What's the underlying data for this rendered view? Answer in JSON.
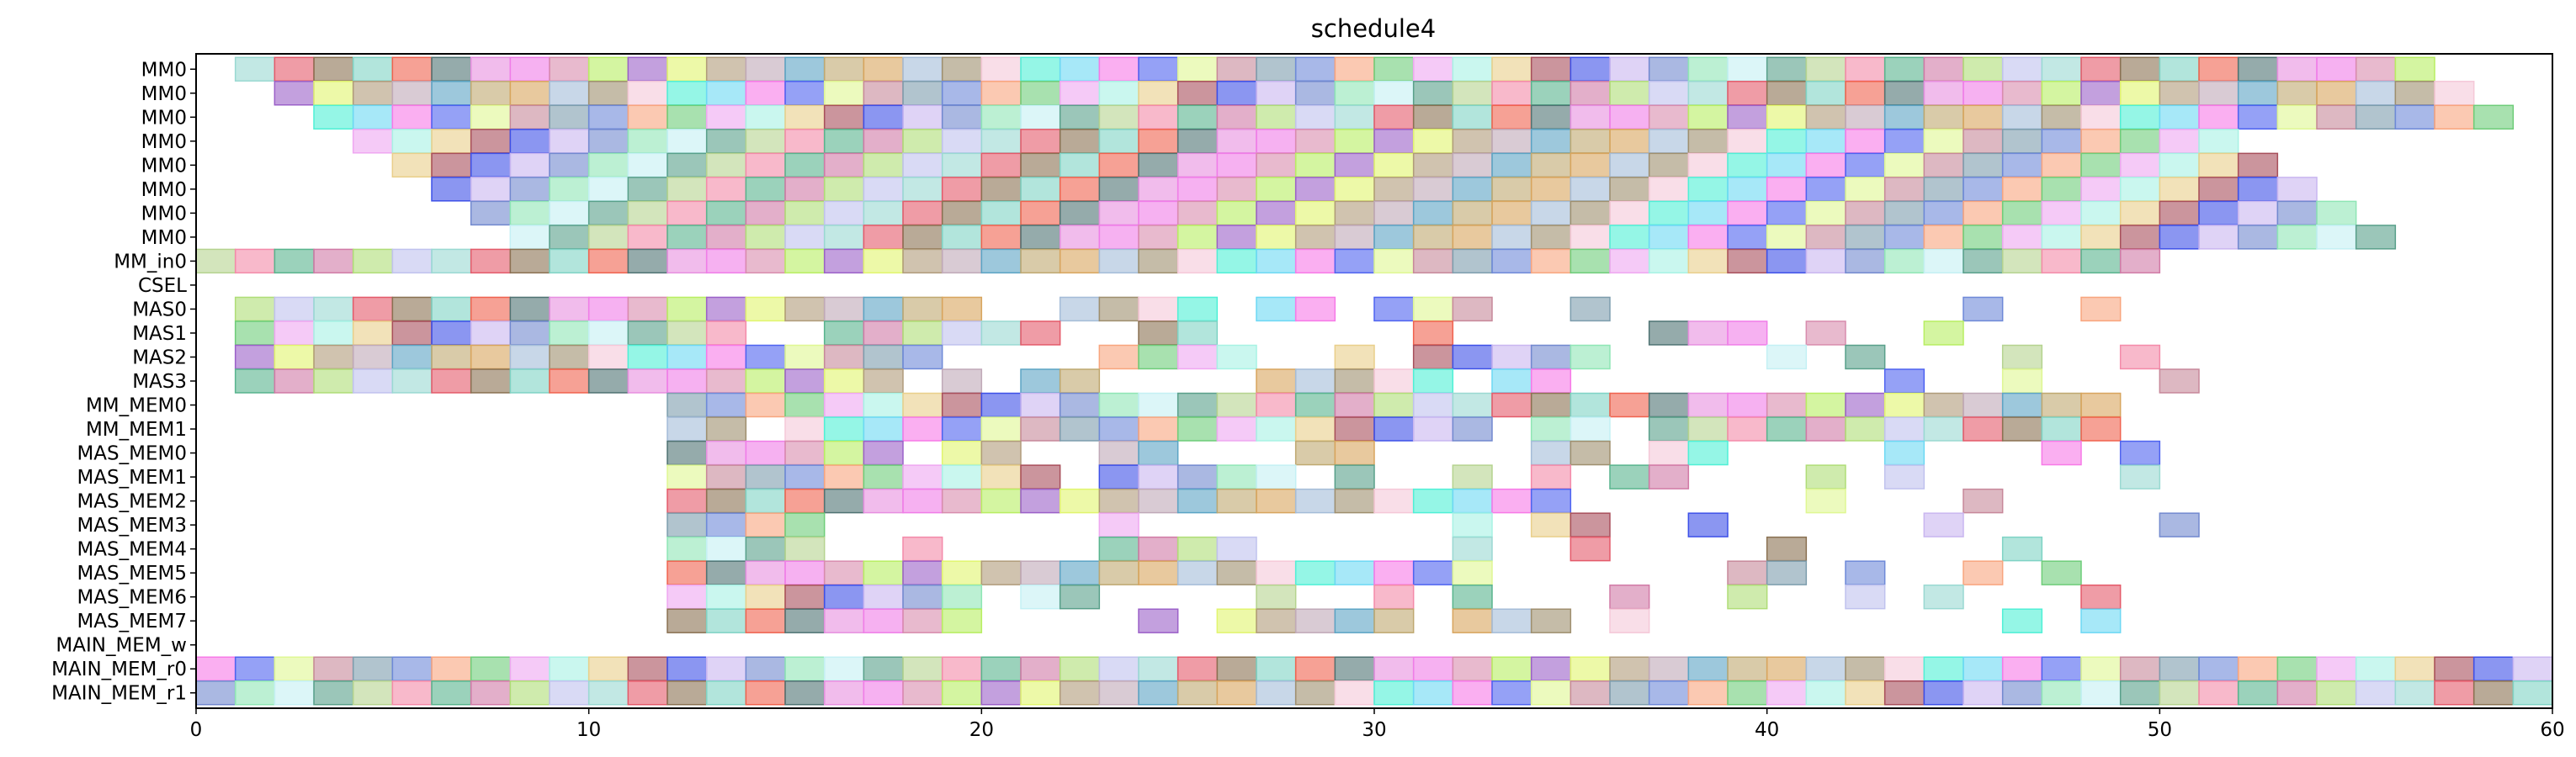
{
  "chart_data": {
    "type": "gantt",
    "title": "schedule4",
    "xlabel": "",
    "ylabel": "",
    "xlim": [
      0,
      60
    ],
    "x_ticks": [
      "0",
      "10",
      "20",
      "30",
      "40",
      "50",
      "60"
    ],
    "grid": false,
    "legend": "none",
    "rows": [
      "MM0",
      "MM0",
      "MM0",
      "MM0",
      "MM0",
      "MM0",
      "MM0",
      "MM0",
      "MM_in0",
      "CSEL",
      "MAS0",
      "MAS1",
      "MAS2",
      "MAS3",
      "MM_MEM0",
      "MM_MEM1",
      "MAS_MEM0",
      "MAS_MEM1",
      "MAS_MEM2",
      "MAS_MEM3",
      "MAS_MEM4",
      "MAS_MEM5",
      "MAS_MEM6",
      "MAS_MEM7",
      "MAIN_MEM_w",
      "MAIN_MEM_r0",
      "MAIN_MEM_r1"
    ],
    "tasks": [
      {
        "row": 0,
        "segments": [
          [
            1,
            9
          ],
          [
            9,
            17
          ],
          [
            17,
            25
          ],
          [
            25,
            33
          ],
          [
            33,
            41
          ],
          [
            41,
            49
          ],
          [
            49,
            57
          ]
        ]
      },
      {
        "row": 1,
        "segments": [
          [
            2,
            10
          ],
          [
            10,
            18
          ],
          [
            18,
            26
          ],
          [
            26,
            34
          ],
          [
            34,
            42
          ],
          [
            42,
            50
          ],
          [
            50,
            58
          ]
        ]
      },
      {
        "row": 2,
        "segments": [
          [
            3,
            11
          ],
          [
            11,
            19
          ],
          [
            19,
            27
          ],
          [
            27,
            35
          ],
          [
            35,
            43
          ],
          [
            43,
            51
          ],
          [
            51,
            59
          ]
        ]
      },
      {
        "row": 3,
        "segments": [
          [
            4,
            12
          ],
          [
            12,
            20
          ],
          [
            20,
            28
          ],
          [
            28,
            36
          ],
          [
            36,
            44
          ],
          [
            44,
            52
          ]
        ]
      },
      {
        "row": 4,
        "segments": [
          [
            5,
            13
          ],
          [
            13,
            21
          ],
          [
            21,
            29
          ],
          [
            29,
            37
          ],
          [
            37,
            45
          ],
          [
            45,
            53
          ]
        ]
      },
      {
        "row": 5,
        "segments": [
          [
            6,
            14
          ],
          [
            14,
            22
          ],
          [
            22,
            30
          ],
          [
            30,
            38
          ],
          [
            38,
            46
          ],
          [
            46,
            54
          ]
        ]
      },
      {
        "row": 6,
        "segments": [
          [
            7,
            15
          ],
          [
            15,
            23
          ],
          [
            23,
            31
          ],
          [
            31,
            39
          ],
          [
            39,
            47
          ],
          [
            47,
            55
          ]
        ]
      },
      {
        "row": 7,
        "segments": [
          [
            8,
            16
          ],
          [
            16,
            24
          ],
          [
            24,
            32
          ],
          [
            32,
            40
          ],
          [
            40,
            48
          ],
          [
            48,
            56
          ]
        ]
      },
      {
        "row": 8,
        "segments": [
          [
            0,
            50
          ]
        ]
      },
      {
        "row": 9,
        "segments": []
      },
      {
        "row": 10,
        "segments": [
          [
            1,
            10
          ],
          [
            10,
            20
          ],
          [
            22,
            26
          ],
          [
            27,
            29
          ],
          [
            30,
            33
          ],
          [
            35,
            36
          ],
          [
            45,
            46
          ],
          [
            48,
            49
          ]
        ]
      },
      {
        "row": 11,
        "segments": [
          [
            1,
            14
          ],
          [
            16,
            22
          ],
          [
            24,
            26
          ],
          [
            31,
            32
          ],
          [
            37,
            40
          ],
          [
            41,
            42
          ],
          [
            44,
            45
          ]
        ]
      },
      {
        "row": 12,
        "segments": [
          [
            1,
            17
          ],
          [
            17,
            19
          ],
          [
            23,
            27
          ],
          [
            29,
            30
          ],
          [
            31,
            36
          ],
          [
            40,
            41
          ],
          [
            42,
            43
          ],
          [
            46,
            47
          ],
          [
            49,
            50
          ]
        ]
      },
      {
        "row": 13,
        "segments": [
          [
            1,
            16
          ],
          [
            16,
            18
          ],
          [
            19,
            20
          ],
          [
            21,
            23
          ],
          [
            27,
            32
          ],
          [
            33,
            35
          ],
          [
            43,
            44
          ],
          [
            46,
            47
          ],
          [
            50,
            51
          ]
        ]
      },
      {
        "row": 14,
        "segments": [
          [
            12,
            36
          ],
          [
            36,
            49
          ]
        ]
      },
      {
        "row": 15,
        "segments": [
          [
            12,
            14
          ],
          [
            15,
            31
          ],
          [
            31,
            33
          ],
          [
            34,
            36
          ],
          [
            37,
            49
          ]
        ]
      },
      {
        "row": 16,
        "segments": [
          [
            12,
            18
          ],
          [
            19,
            21
          ],
          [
            23,
            25
          ],
          [
            28,
            30
          ],
          [
            34,
            36
          ],
          [
            37,
            39
          ],
          [
            43,
            44
          ],
          [
            47,
            48
          ],
          [
            49,
            50
          ]
        ]
      },
      {
        "row": 17,
        "segments": [
          [
            12,
            22
          ],
          [
            23,
            28
          ],
          [
            29,
            30
          ],
          [
            32,
            33
          ],
          [
            34,
            35
          ],
          [
            36,
            38
          ],
          [
            41,
            42
          ],
          [
            43,
            44
          ],
          [
            49,
            50
          ]
        ]
      },
      {
        "row": 18,
        "segments": [
          [
            12,
            35
          ],
          [
            41,
            42
          ],
          [
            45,
            46
          ]
        ]
      },
      {
        "row": 19,
        "segments": [
          [
            12,
            16
          ],
          [
            23,
            24
          ],
          [
            32,
            33
          ],
          [
            34,
            36
          ],
          [
            38,
            39
          ],
          [
            44,
            45
          ],
          [
            50,
            51
          ]
        ]
      },
      {
        "row": 20,
        "segments": [
          [
            12,
            16
          ],
          [
            18,
            19
          ],
          [
            23,
            27
          ],
          [
            32,
            33
          ],
          [
            35,
            36
          ],
          [
            40,
            41
          ],
          [
            46,
            47
          ]
        ]
      },
      {
        "row": 21,
        "segments": [
          [
            12,
            33
          ],
          [
            39,
            41
          ],
          [
            42,
            43
          ],
          [
            45,
            46
          ],
          [
            47,
            48
          ]
        ]
      },
      {
        "row": 22,
        "segments": [
          [
            12,
            18
          ],
          [
            18,
            20
          ],
          [
            21,
            23
          ],
          [
            27,
            28
          ],
          [
            30,
            31
          ],
          [
            32,
            33
          ],
          [
            36,
            37
          ],
          [
            39,
            40
          ],
          [
            42,
            43
          ],
          [
            44,
            45
          ],
          [
            48,
            49
          ]
        ]
      },
      {
        "row": 23,
        "segments": [
          [
            12,
            16
          ],
          [
            16,
            20
          ],
          [
            24,
            25
          ],
          [
            26,
            31
          ],
          [
            32,
            35
          ],
          [
            36,
            37
          ],
          [
            46,
            47
          ],
          [
            48,
            49
          ]
        ]
      },
      {
        "row": 24,
        "segments": []
      },
      {
        "row": 25,
        "segments": [
          [
            0,
            60
          ]
        ]
      },
      {
        "row": 26,
        "segments": [
          [
            0,
            60
          ]
        ]
      }
    ]
  }
}
